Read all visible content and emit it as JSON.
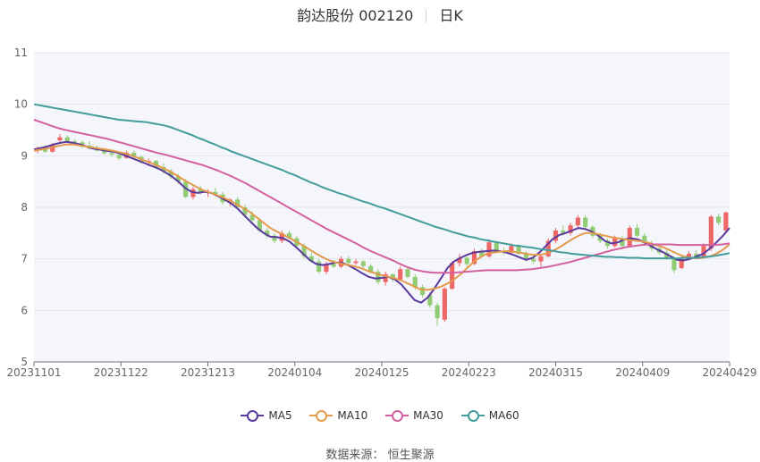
{
  "header": {
    "stock_title": "韵达股份 002120",
    "period": "日K"
  },
  "source_label": "数据来源：",
  "source_value": "恒生聚源",
  "colors": {
    "up": "#ee6666",
    "down": "#91cc75",
    "MA5": "#5b3a9e",
    "MA10": "#e39a4c",
    "MA30": "#d4619f",
    "MA60": "#449d9c"
  },
  "chart_data": {
    "type": "candlestick",
    "title": "韵达股份 002120 日K",
    "ylim": [
      5,
      11
    ],
    "yticks": [
      5,
      6,
      7,
      8,
      9,
      10,
      11
    ],
    "x_tick_labels": [
      "20231101",
      "20231122",
      "20231213",
      "20240104",
      "20240125",
      "20240223",
      "20240315",
      "20240409",
      "20240429"
    ],
    "legend": [
      "MA5",
      "MA10",
      "MA30",
      "MA60"
    ],
    "legend_position": "bottom",
    "grid": true,
    "series": [
      {
        "name": "MA5",
        "values": [
          9.12,
          9.15,
          9.18,
          9.22,
          9.25,
          9.27,
          9.25,
          9.22,
          9.18,
          9.14,
          9.12,
          9.1,
          9.08,
          9.05,
          9.0,
          8.95,
          8.9,
          8.85,
          8.8,
          8.75,
          8.68,
          8.6,
          8.5,
          8.38,
          8.3,
          8.28,
          8.3,
          8.28,
          8.22,
          8.15,
          8.08,
          7.98,
          7.85,
          7.72,
          7.6,
          7.5,
          7.43,
          7.42,
          7.4,
          7.33,
          7.22,
          7.1,
          6.98,
          6.9,
          6.88,
          6.9,
          6.93,
          6.92,
          6.87,
          6.8,
          6.72,
          6.65,
          6.62,
          6.63,
          6.65,
          6.6,
          6.5,
          6.35,
          6.2,
          6.15,
          6.25,
          6.42,
          6.62,
          6.82,
          6.95,
          7.02,
          7.08,
          7.12,
          7.14,
          7.15,
          7.16,
          7.15,
          7.12,
          7.08,
          7.03,
          6.98,
          7.02,
          7.12,
          7.25,
          7.38,
          7.46,
          7.5,
          7.55,
          7.6,
          7.58,
          7.53,
          7.45,
          7.35,
          7.3,
          7.32,
          7.38,
          7.4,
          7.38,
          7.32,
          7.25,
          7.18,
          7.12,
          7.05,
          6.98,
          6.97,
          7.0,
          7.05,
          7.1,
          7.2,
          7.32,
          7.45,
          7.6
        ]
      },
      {
        "name": "MA10",
        "values": [
          9.1,
          9.12,
          9.14,
          9.17,
          9.2,
          9.22,
          9.22,
          9.2,
          9.18,
          9.16,
          9.14,
          9.12,
          9.1,
          9.07,
          9.04,
          9.0,
          8.95,
          8.9,
          8.85,
          8.8,
          8.74,
          8.68,
          8.6,
          8.52,
          8.45,
          8.38,
          8.32,
          8.28,
          8.23,
          8.18,
          8.12,
          8.05,
          7.98,
          7.9,
          7.8,
          7.7,
          7.6,
          7.53,
          7.47,
          7.4,
          7.33,
          7.26,
          7.18,
          7.1,
          7.03,
          6.97,
          6.93,
          6.9,
          6.88,
          6.85,
          6.81,
          6.76,
          6.72,
          6.68,
          6.65,
          6.62,
          6.58,
          6.52,
          6.46,
          6.4,
          6.4,
          6.42,
          6.46,
          6.52,
          6.6,
          6.7,
          6.82,
          6.94,
          7.03,
          7.1,
          7.12,
          7.14,
          7.15,
          7.14,
          7.12,
          7.1,
          7.08,
          7.08,
          7.1,
          7.15,
          7.22,
          7.3,
          7.38,
          7.45,
          7.5,
          7.5,
          7.48,
          7.45,
          7.42,
          7.4,
          7.38,
          7.36,
          7.35,
          7.33,
          7.3,
          7.26,
          7.22,
          7.16,
          7.1,
          7.05,
          7.02,
          7.01,
          7.02,
          7.05,
          7.1,
          7.18,
          7.28
        ]
      },
      {
        "name": "MA30",
        "values": [
          9.7,
          9.65,
          9.6,
          9.55,
          9.51,
          9.48,
          9.45,
          9.42,
          9.39,
          9.36,
          9.33,
          9.29,
          9.25,
          9.21,
          9.17,
          9.13,
          9.09,
          9.05,
          9.02,
          8.98,
          8.94,
          8.9,
          8.86,
          8.82,
          8.77,
          8.72,
          8.66,
          8.6,
          8.53,
          8.46,
          8.38,
          8.3,
          8.22,
          8.14,
          8.06,
          7.98,
          7.9,
          7.82,
          7.74,
          7.66,
          7.58,
          7.51,
          7.44,
          7.37,
          7.3,
          7.22,
          7.15,
          7.09,
          7.03,
          6.97,
          6.9,
          6.84,
          6.79,
          6.76,
          6.74,
          6.73,
          6.73,
          6.73,
          6.74,
          6.75,
          6.76,
          6.77,
          6.78,
          6.78,
          6.78,
          6.78,
          6.78,
          6.79,
          6.8,
          6.82,
          6.84,
          6.87,
          6.9,
          6.93,
          6.97,
          7.01,
          7.05,
          7.09,
          7.13,
          7.17,
          7.2,
          7.23,
          7.25,
          7.27,
          7.28,
          7.28,
          7.28,
          7.28,
          7.27,
          7.27,
          7.27,
          7.27,
          7.27,
          7.27,
          7.28,
          7.3
        ]
      },
      {
        "name": "MA60",
        "values": [
          10.0,
          9.98,
          9.96,
          9.94,
          9.92,
          9.9,
          9.88,
          9.86,
          9.84,
          9.82,
          9.8,
          9.78,
          9.76,
          9.74,
          9.72,
          9.7,
          9.69,
          9.68,
          9.67,
          9.66,
          9.65,
          9.63,
          9.61,
          9.59,
          9.56,
          9.52,
          9.48,
          9.44,
          9.4,
          9.35,
          9.31,
          9.26,
          9.22,
          9.17,
          9.13,
          9.08,
          9.04,
          9.0,
          8.96,
          8.92,
          8.88,
          8.84,
          8.8,
          8.76,
          8.72,
          8.67,
          8.63,
          8.58,
          8.53,
          8.48,
          8.44,
          8.39,
          8.35,
          8.31,
          8.27,
          8.24,
          8.2,
          8.16,
          8.12,
          8.09,
          8.05,
          8.01,
          7.98,
          7.94,
          7.9,
          7.86,
          7.82,
          7.78,
          7.74,
          7.7,
          7.66,
          7.62,
          7.59,
          7.56,
          7.52,
          7.49,
          7.46,
          7.43,
          7.41,
          7.38,
          7.36,
          7.34,
          7.32,
          7.3,
          7.28,
          7.26,
          7.25,
          7.23,
          7.22,
          7.2,
          7.18,
          7.17,
          7.15,
          7.13,
          7.12,
          7.1,
          7.09,
          7.08,
          7.07,
          7.06,
          7.05,
          7.04,
          7.04,
          7.03,
          7.03,
          7.02,
          7.02,
          7.02,
          7.01,
          7.01,
          7.01,
          7.01,
          7.01,
          7.01,
          7.01,
          7.02,
          7.02,
          7.02,
          7.03,
          7.04,
          7.05,
          7.07,
          7.09,
          7.11
        ]
      }
    ],
    "candles": [
      {
        "o": 9.1,
        "h": 9.18,
        "l": 9.05,
        "c": 9.15
      },
      {
        "o": 9.14,
        "h": 9.2,
        "l": 9.06,
        "c": 9.08
      },
      {
        "o": 9.08,
        "h": 9.25,
        "l": 9.06,
        "c": 9.22
      },
      {
        "o": 9.3,
        "h": 9.42,
        "l": 9.25,
        "c": 9.36
      },
      {
        "o": 9.36,
        "h": 9.4,
        "l": 9.26,
        "c": 9.28
      },
      {
        "o": 9.28,
        "h": 9.32,
        "l": 9.2,
        "c": 9.26
      },
      {
        "o": 9.26,
        "h": 9.3,
        "l": 9.15,
        "c": 9.18
      },
      {
        "o": 9.2,
        "h": 9.28,
        "l": 9.12,
        "c": 9.14
      },
      {
        "o": 9.14,
        "h": 9.2,
        "l": 9.08,
        "c": 9.1
      },
      {
        "o": 9.1,
        "h": 9.15,
        "l": 9.02,
        "c": 9.05
      },
      {
        "o": 9.05,
        "h": 9.12,
        "l": 8.98,
        "c": 9.02
      },
      {
        "o": 9.02,
        "h": 9.08,
        "l": 8.92,
        "c": 8.95
      },
      {
        "o": 8.96,
        "h": 9.1,
        "l": 8.94,
        "c": 9.06
      },
      {
        "o": 9.06,
        "h": 9.1,
        "l": 8.95,
        "c": 8.98
      },
      {
        "o": 8.98,
        "h": 9.0,
        "l": 8.85,
        "c": 8.88
      },
      {
        "o": 8.88,
        "h": 8.95,
        "l": 8.8,
        "c": 8.9
      },
      {
        "o": 8.9,
        "h": 8.92,
        "l": 8.75,
        "c": 8.78
      },
      {
        "o": 8.78,
        "h": 8.85,
        "l": 8.65,
        "c": 8.7
      },
      {
        "o": 8.7,
        "h": 8.75,
        "l": 8.55,
        "c": 8.6
      },
      {
        "o": 8.6,
        "h": 8.65,
        "l": 8.45,
        "c": 8.5
      },
      {
        "o": 8.5,
        "h": 8.55,
        "l": 8.18,
        "c": 8.2
      },
      {
        "o": 8.2,
        "h": 8.4,
        "l": 8.15,
        "c": 8.35
      },
      {
        "o": 8.35,
        "h": 8.42,
        "l": 8.25,
        "c": 8.28
      },
      {
        "o": 8.28,
        "h": 8.35,
        "l": 8.2,
        "c": 8.3
      },
      {
        "o": 8.3,
        "h": 8.38,
        "l": 8.22,
        "c": 8.25
      },
      {
        "o": 8.25,
        "h": 8.3,
        "l": 8.05,
        "c": 8.1
      },
      {
        "o": 8.1,
        "h": 8.18,
        "l": 8.02,
        "c": 8.15
      },
      {
        "o": 8.15,
        "h": 8.2,
        "l": 7.95,
        "c": 8.0
      },
      {
        "o": 8.0,
        "h": 8.05,
        "l": 7.8,
        "c": 7.85
      },
      {
        "o": 7.85,
        "h": 7.92,
        "l": 7.7,
        "c": 7.75
      },
      {
        "o": 7.75,
        "h": 7.8,
        "l": 7.52,
        "c": 7.55
      },
      {
        "o": 7.55,
        "h": 7.6,
        "l": 7.4,
        "c": 7.45
      },
      {
        "o": 7.45,
        "h": 7.5,
        "l": 7.3,
        "c": 7.35
      },
      {
        "o": 7.35,
        "h": 7.55,
        "l": 7.3,
        "c": 7.5
      },
      {
        "o": 7.5,
        "h": 7.55,
        "l": 7.38,
        "c": 7.4
      },
      {
        "o": 7.4,
        "h": 7.45,
        "l": 7.2,
        "c": 7.25
      },
      {
        "o": 7.25,
        "h": 7.3,
        "l": 7.0,
        "c": 7.05
      },
      {
        "o": 7.05,
        "h": 7.12,
        "l": 6.92,
        "c": 6.95
      },
      {
        "o": 6.95,
        "h": 7.0,
        "l": 6.72,
        "c": 6.75
      },
      {
        "o": 6.75,
        "h": 6.95,
        "l": 6.7,
        "c": 6.9
      },
      {
        "o": 6.9,
        "h": 6.98,
        "l": 6.82,
        "c": 6.85
      },
      {
        "o": 6.85,
        "h": 7.05,
        "l": 6.82,
        "c": 7.0
      },
      {
        "o": 7.0,
        "h": 7.05,
        "l": 6.88,
        "c": 6.92
      },
      {
        "o": 6.92,
        "h": 7.0,
        "l": 6.88,
        "c": 6.95
      },
      {
        "o": 6.95,
        "h": 6.98,
        "l": 6.82,
        "c": 6.86
      },
      {
        "o": 6.86,
        "h": 6.9,
        "l": 6.72,
        "c": 6.75
      },
      {
        "o": 6.75,
        "h": 6.8,
        "l": 6.5,
        "c": 6.55
      },
      {
        "o": 6.55,
        "h": 6.75,
        "l": 6.48,
        "c": 6.7
      },
      {
        "o": 6.7,
        "h": 6.72,
        "l": 6.55,
        "c": 6.6
      },
      {
        "o": 6.6,
        "h": 6.85,
        "l": 6.58,
        "c": 6.8
      },
      {
        "o": 6.8,
        "h": 6.85,
        "l": 6.62,
        "c": 6.65
      },
      {
        "o": 6.65,
        "h": 6.7,
        "l": 6.4,
        "c": 6.45
      },
      {
        "o": 6.45,
        "h": 6.5,
        "l": 6.25,
        "c": 6.3
      },
      {
        "o": 6.3,
        "h": 6.35,
        "l": 6.05,
        "c": 6.1
      },
      {
        "o": 6.1,
        "h": 6.15,
        "l": 5.7,
        "c": 5.85
      },
      {
        "o": 5.82,
        "h": 6.45,
        "l": 5.78,
        "c": 6.42
      },
      {
        "o": 6.42,
        "h": 6.95,
        "l": 6.4,
        "c": 6.92
      },
      {
        "o": 6.92,
        "h": 7.1,
        "l": 6.85,
        "c": 7.02
      },
      {
        "o": 7.02,
        "h": 7.05,
        "l": 6.85,
        "c": 6.9
      },
      {
        "o": 6.9,
        "h": 7.2,
        "l": 6.88,
        "c": 7.15
      },
      {
        "o": 7.15,
        "h": 7.2,
        "l": 7.02,
        "c": 7.05
      },
      {
        "o": 7.05,
        "h": 7.38,
        "l": 7.02,
        "c": 7.32
      },
      {
        "o": 7.32,
        "h": 7.35,
        "l": 7.12,
        "c": 7.15
      },
      {
        "o": 7.15,
        "h": 7.22,
        "l": 7.08,
        "c": 7.12
      },
      {
        "o": 7.12,
        "h": 7.3,
        "l": 7.1,
        "c": 7.25
      },
      {
        "o": 7.25,
        "h": 7.28,
        "l": 7.08,
        "c": 7.1
      },
      {
        "o": 7.1,
        "h": 7.15,
        "l": 6.95,
        "c": 7.0
      },
      {
        "o": 7.0,
        "h": 7.05,
        "l": 6.9,
        "c": 6.95
      },
      {
        "o": 6.95,
        "h": 7.1,
        "l": 6.85,
        "c": 7.05
      },
      {
        "o": 7.05,
        "h": 7.4,
        "l": 7.02,
        "c": 7.35
      },
      {
        "o": 7.35,
        "h": 7.6,
        "l": 7.3,
        "c": 7.55
      },
      {
        "o": 7.55,
        "h": 7.65,
        "l": 7.45,
        "c": 7.5
      },
      {
        "o": 7.5,
        "h": 7.7,
        "l": 7.45,
        "c": 7.65
      },
      {
        "o": 7.65,
        "h": 7.85,
        "l": 7.6,
        "c": 7.8
      },
      {
        "o": 7.8,
        "h": 7.85,
        "l": 7.6,
        "c": 7.62
      },
      {
        "o": 7.62,
        "h": 7.65,
        "l": 7.4,
        "c": 7.45
      },
      {
        "o": 7.45,
        "h": 7.5,
        "l": 7.3,
        "c": 7.35
      },
      {
        "o": 7.35,
        "h": 7.4,
        "l": 7.2,
        "c": 7.25
      },
      {
        "o": 7.25,
        "h": 7.45,
        "l": 7.22,
        "c": 7.4
      },
      {
        "o": 7.4,
        "h": 7.45,
        "l": 7.22,
        "c": 7.25
      },
      {
        "o": 7.25,
        "h": 7.65,
        "l": 7.22,
        "c": 7.6
      },
      {
        "o": 7.6,
        "h": 7.68,
        "l": 7.42,
        "c": 7.45
      },
      {
        "o": 7.45,
        "h": 7.5,
        "l": 7.28,
        "c": 7.3
      },
      {
        "o": 7.3,
        "h": 7.35,
        "l": 7.15,
        "c": 7.2
      },
      {
        "o": 7.2,
        "h": 7.25,
        "l": 7.08,
        "c": 7.12
      },
      {
        "o": 7.12,
        "h": 7.18,
        "l": 6.98,
        "c": 7.0
      },
      {
        "o": 7.0,
        "h": 7.05,
        "l": 6.72,
        "c": 6.78
      },
      {
        "o": 6.82,
        "h": 7.05,
        "l": 6.8,
        "c": 7.02
      },
      {
        "o": 7.02,
        "h": 7.15,
        "l": 6.98,
        "c": 7.1
      },
      {
        "o": 7.1,
        "h": 7.18,
        "l": 7.0,
        "c": 7.05
      },
      {
        "o": 7.05,
        "h": 7.3,
        "l": 7.02,
        "c": 7.25
      },
      {
        "o": 7.2,
        "h": 7.85,
        "l": 7.15,
        "c": 7.82
      },
      {
        "o": 7.82,
        "h": 7.88,
        "l": 7.65,
        "c": 7.7
      },
      {
        "o": 7.55,
        "h": 7.92,
        "l": 7.52,
        "c": 7.9
      }
    ]
  }
}
